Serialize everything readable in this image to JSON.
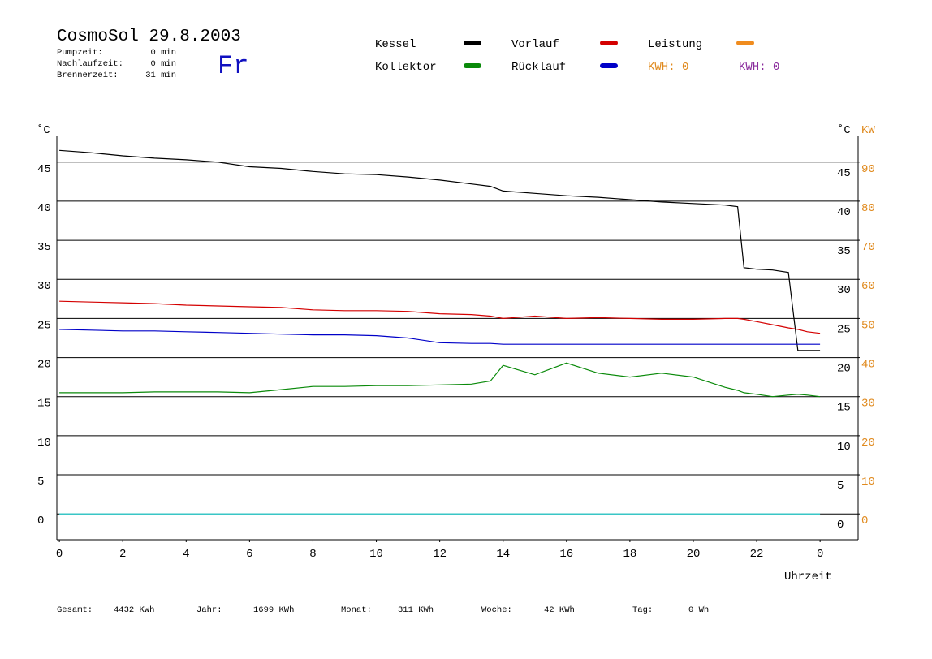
{
  "header": {
    "title": "CosmoSol 29.8.2003",
    "day": "Fr",
    "info": [
      [
        "Pumpzeit:",
        "0 min"
      ],
      [
        "Nachlaufzeit:",
        "0 min"
      ],
      [
        "Brennerzeit:",
        "31 min"
      ]
    ],
    "kwh": [
      {
        "label": "KWH: 0",
        "color": "#e08a1e"
      },
      {
        "label": "KWH: 0",
        "color": "#8a2c9c"
      }
    ]
  },
  "chart_data": {
    "type": "line",
    "y_label": "˚C",
    "y2_label": "˚C",
    "y2_unit": "KW",
    "x_label": "Uhrzeit",
    "x": [
      0,
      1,
      2,
      3,
      4,
      5,
      6,
      7,
      8,
      9,
      10,
      11,
      12,
      13,
      13.6,
      14,
      15,
      16,
      17,
      18,
      19,
      20,
      21,
      21.4,
      21.6,
      22,
      22.5,
      23,
      23.3,
      23.6,
      24
    ],
    "xlim": [
      -0.08,
      25.2
    ],
    "xticks": [
      0,
      2,
      4,
      6,
      8,
      10,
      12,
      14,
      16,
      18,
      20,
      22,
      {
        "value": 24,
        "label": "0"
      }
    ],
    "ylim": [
      -3.3,
      48.4
    ],
    "yticks": [
      0,
      5,
      10,
      15,
      20,
      25,
      30,
      35,
      40,
      45
    ],
    "y2lim": [
      -6.6,
      96.8
    ],
    "y2ticks": [
      0,
      10,
      20,
      30,
      40,
      50,
      60,
      70,
      80,
      90
    ],
    "grid": true,
    "series": [
      {
        "name": "Kessel",
        "color": "#000000",
        "values": [
          46.5,
          46.2,
          45.8,
          45.5,
          45.3,
          45.0,
          44.4,
          44.2,
          43.8,
          43.5,
          43.4,
          43.1,
          42.7,
          42.2,
          41.9,
          41.3,
          41.0,
          40.7,
          40.5,
          40.2,
          39.9,
          39.7,
          39.5,
          39.3,
          31.5,
          31.3,
          31.2,
          30.9,
          20.9,
          20.9,
          20.9
        ]
      },
      {
        "name": "Vorlauf",
        "color": "#d40000",
        "values": [
          27.2,
          27.1,
          27.0,
          26.9,
          26.7,
          26.6,
          26.5,
          26.4,
          26.1,
          26.0,
          26.0,
          25.9,
          25.6,
          25.5,
          25.3,
          25.0,
          25.3,
          25.0,
          25.1,
          25.0,
          24.9,
          24.9,
          25.0,
          25.0,
          24.9,
          24.6,
          24.2,
          23.8,
          23.6,
          23.3,
          23.1
        ]
      },
      {
        "name": "Leistung",
        "color": "#f08c1e",
        "axis": "y2",
        "values": [
          null,
          null,
          null,
          null,
          null,
          null,
          null,
          null,
          null,
          null,
          null,
          null,
          null,
          null,
          null,
          null,
          null,
          null,
          null,
          null,
          null,
          null,
          null,
          null,
          null,
          null,
          null,
          null,
          null,
          null,
          null
        ]
      },
      {
        "name": "Kollektor",
        "color": "#0a8a0a",
        "values": [
          15.5,
          15.5,
          15.5,
          15.6,
          15.6,
          15.6,
          15.5,
          15.9,
          16.3,
          16.3,
          16.4,
          16.4,
          16.5,
          16.6,
          17.0,
          19.0,
          17.8,
          19.3,
          18.0,
          17.5,
          18.0,
          17.5,
          16.2,
          15.8,
          15.5,
          15.3,
          15.0,
          15.2,
          15.3,
          15.2,
          15.0
        ]
      },
      {
        "name": "Rücklauf",
        "color": "#0000c8",
        "values": [
          23.6,
          23.5,
          23.4,
          23.4,
          23.3,
          23.2,
          23.1,
          23.0,
          22.9,
          22.9,
          22.8,
          22.5,
          21.9,
          21.8,
          21.8,
          21.7,
          21.7,
          21.7,
          21.7,
          21.7,
          21.7,
          21.7,
          21.7,
          21.7,
          21.7,
          21.7,
          21.7,
          21.7,
          21.7,
          21.7,
          21.7
        ]
      },
      {
        "color": "#22dddd",
        "values": [
          0,
          0,
          0,
          0,
          0,
          0,
          0,
          0,
          0,
          0,
          0,
          0,
          0,
          0,
          0,
          0,
          0,
          0,
          0,
          0,
          0,
          0,
          0,
          0,
          0,
          0,
          0,
          0,
          0,
          0,
          0
        ]
      }
    ]
  },
  "footer": [
    {
      "label": "Gesamt:",
      "value": "4432 KWh"
    },
    {
      "label": "Jahr:",
      "value": "1699 KWh"
    },
    {
      "label": "Monat:",
      "value": "311 KWh"
    },
    {
      "label": "Woche:",
      "value": "42 KWh"
    },
    {
      "label": "Tag:",
      "value": "0 Wh"
    }
  ]
}
